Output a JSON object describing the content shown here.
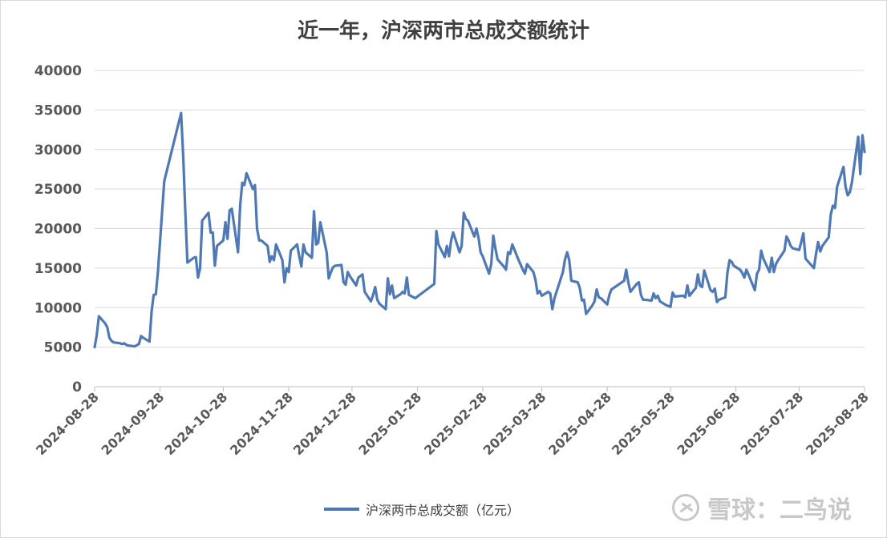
{
  "chart_data": {
    "type": "line",
    "title": "近一年，沪深两市总成交额统计",
    "xlabel": "",
    "ylabel": "",
    "ylim": [
      0,
      40000
    ],
    "yticks": [
      0,
      5000,
      10000,
      15000,
      20000,
      25000,
      30000,
      35000,
      40000
    ],
    "xticks": [
      "2024-08-28",
      "2024-09-28",
      "2024-10-28",
      "2024-11-28",
      "2024-12-28",
      "2025-01-28",
      "2025-02-28",
      "2025-03-28",
      "2025-04-28",
      "2025-05-28",
      "2025-06-28",
      "2025-07-28",
      "2025-08-28"
    ],
    "grid": "horizontal",
    "legend": "bottom",
    "series": [
      {
        "name": "沪深两市总成交额（亿元）",
        "color": "#4e79b5",
        "points": [
          [
            "2024-08-28",
            5000
          ],
          [
            "2024-08-29",
            6500
          ],
          [
            "2024-08-30",
            8900
          ],
          [
            "2024-09-02",
            8000
          ],
          [
            "2024-09-03",
            7500
          ],
          [
            "2024-09-04",
            6200
          ],
          [
            "2024-09-05",
            5800
          ],
          [
            "2024-09-06",
            5600
          ],
          [
            "2024-09-09",
            5500
          ],
          [
            "2024-09-10",
            5400
          ],
          [
            "2024-09-11",
            5500
          ],
          [
            "2024-09-12",
            5300
          ],
          [
            "2024-09-13",
            5200
          ],
          [
            "2024-09-16",
            5100
          ],
          [
            "2024-09-18",
            5400
          ],
          [
            "2024-09-19",
            6400
          ],
          [
            "2024-09-20",
            6200
          ],
          [
            "2024-09-23",
            5700
          ],
          [
            "2024-09-24",
            9500
          ],
          [
            "2024-09-25",
            11600
          ],
          [
            "2024-09-26",
            11700
          ],
          [
            "2024-09-27",
            14500
          ],
          [
            "2024-09-30",
            26000
          ],
          [
            "2024-10-08",
            34600
          ],
          [
            "2024-10-09",
            29000
          ],
          [
            "2024-10-10",
            22000
          ],
          [
            "2024-10-11",
            15700
          ],
          [
            "2024-10-14",
            16300
          ],
          [
            "2024-10-15",
            16400
          ],
          [
            "2024-10-16",
            13800
          ],
          [
            "2024-10-17",
            15000
          ],
          [
            "2024-10-18",
            21000
          ],
          [
            "2024-10-21",
            22000
          ],
          [
            "2024-10-22",
            19500
          ],
          [
            "2024-10-23",
            19500
          ],
          [
            "2024-10-24",
            15300
          ],
          [
            "2024-10-25",
            17800
          ],
          [
            "2024-10-28",
            18500
          ],
          [
            "2024-10-29",
            20800
          ],
          [
            "2024-10-30",
            18700
          ],
          [
            "2024-10-31",
            22300
          ],
          [
            "2024-11-01",
            22500
          ],
          [
            "2024-11-04",
            17000
          ],
          [
            "2024-11-05",
            23000
          ],
          [
            "2024-11-06",
            25800
          ],
          [
            "2024-11-07",
            25500
          ],
          [
            "2024-11-08",
            27000
          ],
          [
            "2024-11-11",
            25000
          ],
          [
            "2024-11-12",
            25500
          ],
          [
            "2024-11-13",
            20000
          ],
          [
            "2024-11-14",
            18500
          ],
          [
            "2024-11-15",
            18500
          ],
          [
            "2024-11-18",
            17800
          ],
          [
            "2024-11-19",
            15800
          ],
          [
            "2024-11-20",
            16500
          ],
          [
            "2024-11-21",
            16000
          ],
          [
            "2024-11-22",
            18000
          ],
          [
            "2024-11-25",
            16000
          ],
          [
            "2024-11-26",
            13200
          ],
          [
            "2024-11-27",
            15000
          ],
          [
            "2024-11-28",
            14500
          ],
          [
            "2024-11-29",
            17200
          ],
          [
            "2024-12-02",
            18000
          ],
          [
            "2024-12-03",
            16500
          ],
          [
            "2024-12-04",
            15200
          ],
          [
            "2024-12-05",
            18000
          ],
          [
            "2024-12-06",
            17000
          ],
          [
            "2024-12-09",
            16300
          ],
          [
            "2024-12-10",
            22200
          ],
          [
            "2024-12-11",
            18000
          ],
          [
            "2024-12-12",
            18200
          ],
          [
            "2024-12-13",
            20800
          ],
          [
            "2024-12-16",
            17000
          ],
          [
            "2024-12-17",
            13700
          ],
          [
            "2024-12-18",
            14500
          ],
          [
            "2024-12-19",
            15100
          ],
          [
            "2024-12-20",
            15300
          ],
          [
            "2024-12-23",
            15400
          ],
          [
            "2024-12-24",
            13200
          ],
          [
            "2024-12-25",
            12900
          ],
          [
            "2024-12-26",
            14500
          ],
          [
            "2024-12-27",
            14000
          ],
          [
            "2024-12-30",
            12800
          ],
          [
            "2024-12-31",
            13800
          ],
          [
            "2025-01-02",
            14200
          ],
          [
            "2025-01-03",
            12000
          ],
          [
            "2025-01-06",
            10800
          ],
          [
            "2025-01-07",
            11600
          ],
          [
            "2025-01-08",
            12600
          ],
          [
            "2025-01-09",
            11000
          ],
          [
            "2025-01-10",
            10500
          ],
          [
            "2025-01-13",
            9800
          ],
          [
            "2025-01-14",
            13700
          ],
          [
            "2025-01-15",
            11700
          ],
          [
            "2025-01-16",
            12800
          ],
          [
            "2025-01-17",
            11200
          ],
          [
            "2025-01-20",
            11700
          ],
          [
            "2025-01-21",
            12000
          ],
          [
            "2025-01-22",
            11800
          ],
          [
            "2025-01-23",
            13800
          ],
          [
            "2025-01-24",
            11600
          ],
          [
            "2025-01-27",
            11200
          ],
          [
            "2025-02-05",
            13000
          ],
          [
            "2025-02-06",
            19700
          ],
          [
            "2025-02-07",
            18000
          ],
          [
            "2025-02-10",
            16400
          ],
          [
            "2025-02-11",
            17800
          ],
          [
            "2025-02-12",
            16500
          ],
          [
            "2025-02-13",
            18500
          ],
          [
            "2025-02-14",
            19500
          ],
          [
            "2025-02-17",
            17000
          ],
          [
            "2025-02-18",
            17800
          ],
          [
            "2025-02-19",
            22000
          ],
          [
            "2025-02-20",
            21200
          ],
          [
            "2025-02-21",
            21000
          ],
          [
            "2025-02-24",
            19000
          ],
          [
            "2025-02-25",
            20000
          ],
          [
            "2025-02-26",
            18800
          ],
          [
            "2025-02-27",
            17000
          ],
          [
            "2025-02-28",
            16500
          ],
          [
            "2025-03-03",
            14300
          ],
          [
            "2025-03-04",
            15500
          ],
          [
            "2025-03-05",
            19100
          ],
          [
            "2025-03-06",
            17500
          ],
          [
            "2025-03-07",
            16100
          ],
          [
            "2025-03-10",
            15200
          ],
          [
            "2025-03-11",
            14800
          ],
          [
            "2025-03-12",
            17000
          ],
          [
            "2025-03-13",
            16800
          ],
          [
            "2025-03-14",
            18000
          ],
          [
            "2025-03-17",
            16000
          ],
          [
            "2025-03-18",
            15400
          ],
          [
            "2025-03-19",
            14800
          ],
          [
            "2025-03-20",
            14300
          ],
          [
            "2025-03-21",
            15500
          ],
          [
            "2025-03-24",
            14500
          ],
          [
            "2025-03-25",
            13500
          ],
          [
            "2025-03-26",
            11800
          ],
          [
            "2025-03-27",
            12100
          ],
          [
            "2025-03-28",
            11500
          ],
          [
            "2025-03-31",
            12000
          ],
          [
            "2025-04-01",
            11800
          ],
          [
            "2025-04-02",
            9800
          ],
          [
            "2025-04-03",
            11200
          ],
          [
            "2025-04-07",
            14500
          ],
          [
            "2025-04-08",
            16100
          ],
          [
            "2025-04-09",
            17000
          ],
          [
            "2025-04-10",
            16000
          ],
          [
            "2025-04-11",
            13400
          ],
          [
            "2025-04-14",
            13200
          ],
          [
            "2025-04-15",
            12500
          ],
          [
            "2025-04-16",
            10900
          ],
          [
            "2025-04-17",
            11000
          ],
          [
            "2025-04-18",
            9200
          ],
          [
            "2025-04-21",
            10300
          ],
          [
            "2025-04-22",
            10800
          ],
          [
            "2025-04-23",
            12300
          ],
          [
            "2025-04-24",
            11300
          ],
          [
            "2025-04-25",
            11200
          ],
          [
            "2025-04-28",
            10400
          ],
          [
            "2025-04-29",
            11600
          ],
          [
            "2025-04-30",
            12300
          ],
          [
            "2025-05-06",
            13400
          ],
          [
            "2025-05-07",
            14800
          ],
          [
            "2025-05-08",
            13200
          ],
          [
            "2025-05-09",
            12000
          ],
          [
            "2025-05-12",
            13000
          ],
          [
            "2025-05-13",
            13200
          ],
          [
            "2025-05-14",
            11600
          ],
          [
            "2025-05-15",
            11000
          ],
          [
            "2025-05-16",
            11000
          ],
          [
            "2025-05-19",
            10900
          ],
          [
            "2025-05-20",
            11800
          ],
          [
            "2025-05-21",
            11200
          ],
          [
            "2025-05-22",
            11500
          ],
          [
            "2025-05-23",
            10800
          ],
          [
            "2025-05-26",
            10300
          ],
          [
            "2025-05-27",
            10200
          ],
          [
            "2025-05-28",
            10100
          ],
          [
            "2025-05-29",
            11900
          ],
          [
            "2025-05-30",
            11400
          ],
          [
            "2025-06-03",
            11500
          ],
          [
            "2025-06-04",
            11300
          ],
          [
            "2025-06-05",
            12800
          ],
          [
            "2025-06-06",
            11500
          ],
          [
            "2025-06-09",
            12500
          ],
          [
            "2025-06-10",
            14200
          ],
          [
            "2025-06-11",
            12800
          ],
          [
            "2025-06-12",
            12600
          ],
          [
            "2025-06-13",
            14700
          ],
          [
            "2025-06-16",
            12200
          ],
          [
            "2025-06-17",
            12000
          ],
          [
            "2025-06-18",
            12400
          ],
          [
            "2025-06-19",
            10700
          ],
          [
            "2025-06-20",
            11000
          ],
          [
            "2025-06-23",
            11300
          ],
          [
            "2025-06-24",
            14400
          ],
          [
            "2025-06-25",
            16000
          ],
          [
            "2025-06-26",
            15800
          ],
          [
            "2025-06-27",
            15300
          ],
          [
            "2025-06-30",
            14800
          ],
          [
            "2025-07-01",
            14400
          ],
          [
            "2025-07-02",
            13800
          ],
          [
            "2025-07-03",
            14800
          ],
          [
            "2025-07-04",
            14200
          ],
          [
            "2025-07-07",
            12200
          ],
          [
            "2025-07-08",
            14300
          ],
          [
            "2025-07-09",
            14800
          ],
          [
            "2025-07-10",
            17200
          ],
          [
            "2025-07-11",
            16200
          ],
          [
            "2025-07-14",
            14500
          ],
          [
            "2025-07-15",
            16300
          ],
          [
            "2025-07-16",
            14500
          ],
          [
            "2025-07-17",
            15500
          ],
          [
            "2025-07-18",
            16000
          ],
          [
            "2025-07-21",
            17200
          ],
          [
            "2025-07-22",
            19000
          ],
          [
            "2025-07-23",
            18500
          ],
          [
            "2025-07-24",
            17800
          ],
          [
            "2025-07-25",
            17500
          ],
          [
            "2025-07-28",
            17300
          ],
          [
            "2025-07-29",
            18300
          ],
          [
            "2025-07-30",
            19400
          ],
          [
            "2025-07-31",
            16200
          ],
          [
            "2025-08-01",
            15900
          ],
          [
            "2025-08-04",
            15000
          ],
          [
            "2025-08-05",
            16800
          ],
          [
            "2025-08-06",
            18300
          ],
          [
            "2025-08-07",
            17100
          ],
          [
            "2025-08-08",
            17800
          ],
          [
            "2025-08-11",
            18900
          ],
          [
            "2025-08-12",
            21800
          ],
          [
            "2025-08-13",
            22900
          ],
          [
            "2025-08-14",
            22600
          ],
          [
            "2025-08-15",
            25300
          ],
          [
            "2025-08-18",
            27800
          ],
          [
            "2025-08-19",
            25300
          ],
          [
            "2025-08-20",
            24200
          ],
          [
            "2025-08-21",
            24600
          ],
          [
            "2025-08-22",
            25800
          ],
          [
            "2025-08-25",
            31600
          ],
          [
            "2025-08-26",
            26900
          ],
          [
            "2025-08-27",
            31800
          ],
          [
            "2025-08-28",
            29700
          ]
        ]
      }
    ]
  },
  "watermark": {
    "text": "雪球：二鸟说",
    "logo_icon": "snowball-logo-icon"
  }
}
